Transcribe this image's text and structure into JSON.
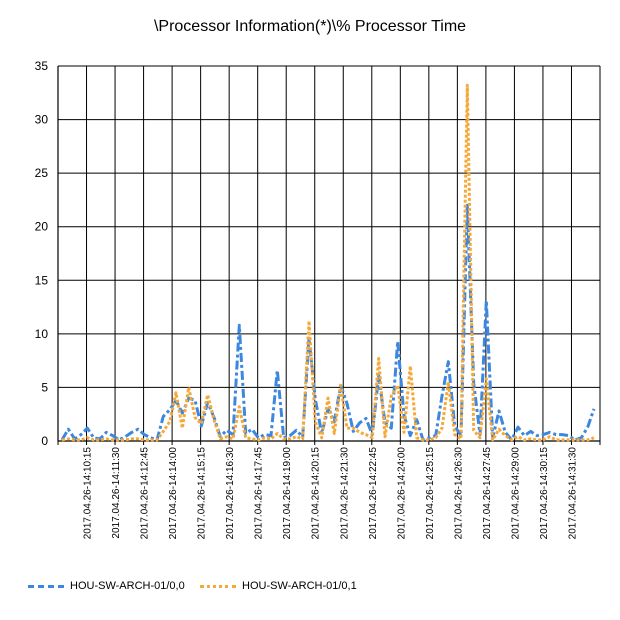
{
  "chart_data": {
    "type": "line",
    "title": "\\Processor Information(*)\\% Processor Time",
    "ylim": [
      0,
      35
    ],
    "yticks": [
      0,
      5,
      10,
      15,
      20,
      25,
      30,
      35
    ],
    "grid": true,
    "legend_position": "bottom-left",
    "x_tick_labels": [
      "2017.04.26-14:10:15",
      "2017.04.26-14:11:30",
      "2017.04.26-14:12:45",
      "2017.04.26-14:14:00",
      "2017.04.26-14:15:15",
      "2017.04.26-14:16:30",
      "2017.04.26-14:17:45",
      "2017.04.26-14:19:00",
      "2017.04.26-14:20:15",
      "2017.04.26-14:21:30",
      "2017.04.26-14:22:45",
      "2017.04.26-14:24:00",
      "2017.04.26-14:25:15",
      "2017.04.26-14:26:30",
      "2017.04.26-14:27:45",
      "2017.04.26-14:29:00",
      "2017.04.26-14:30:15",
      "2017.04.26-14:31:30"
    ],
    "series": [
      {
        "name": "HOU-SW-ARCH-01/0,0",
        "color": "#3c87e0",
        "values": [
          0.1,
          1.1,
          0.2,
          0.6,
          1.2,
          0.3,
          0.2,
          0.8,
          0.5,
          0.1,
          0.4,
          0.8,
          1.1,
          0.6,
          0.3,
          0.1,
          2.3,
          2.9,
          3.8,
          2.6,
          4.0,
          3.8,
          1.4,
          3.6,
          2.2,
          0.4,
          1.0,
          0.6,
          10.8,
          0.7,
          1.1,
          0.3,
          0.6,
          0.5,
          6.6,
          0.3,
          0.5,
          1.0,
          0.4,
          9.6,
          3.9,
          0.7,
          3.0,
          1.8,
          5.2,
          3.5,
          0.9,
          1.7,
          2.1,
          0.6,
          6.1,
          1.7,
          1.2,
          9.3,
          2.4,
          0.5,
          2.0,
          0.1,
          0.3,
          0.5,
          4.2,
          7.4,
          1.4,
          0.5,
          22.0,
          5.4,
          0.6,
          13.1,
          0.3,
          2.8,
          0.8,
          0.1,
          1.3,
          0.5,
          0.9,
          0.5,
          0.6,
          0.8,
          0.6,
          0.6,
          0.5,
          0.1,
          0.3,
          1.3,
          3.0
        ]
      },
      {
        "name": "HOU-SW-ARCH-01/0,1",
        "color": "#f5a93b",
        "values": [
          0.1,
          0.2,
          0.1,
          0.1,
          0.3,
          0.1,
          0.1,
          0.2,
          0.1,
          0.1,
          0.1,
          0.2,
          0.2,
          0.1,
          0.1,
          0.1,
          0.9,
          1.8,
          4.5,
          1.2,
          5.0,
          2.2,
          1.6,
          4.3,
          2.0,
          0.2,
          0.4,
          0.2,
          3.2,
          0.3,
          0.2,
          0.1,
          0.3,
          0.2,
          0.7,
          0.2,
          0.2,
          0.4,
          0.2,
          11.2,
          1.8,
          0.3,
          4.0,
          0.7,
          5.2,
          1.2,
          1.2,
          0.8,
          0.6,
          0.3,
          7.7,
          0.4,
          4.2,
          5.2,
          0.8,
          7.0,
          0.3,
          0.1,
          0.1,
          0.3,
          1.2,
          5.5,
          0.6,
          0.2,
          33.2,
          1.0,
          0.3,
          5.8,
          0.1,
          1.1,
          0.5,
          0.1,
          0.4,
          0.1,
          0.2,
          0.1,
          0.1,
          0.4,
          0.1,
          0.1,
          0.1,
          0.1,
          0.1,
          0.1,
          0.3
        ]
      }
    ]
  }
}
